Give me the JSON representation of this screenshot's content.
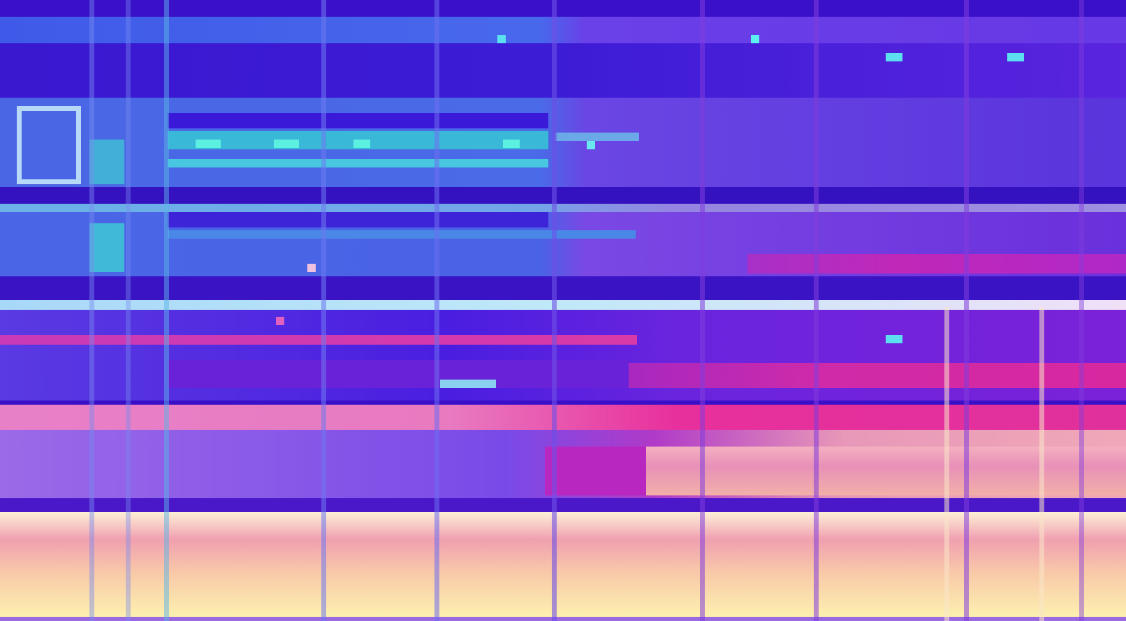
{
  "palette": {
    "base": "#3a0fc8",
    "deep": "#2a0ab0",
    "blue": "#3d4fe6",
    "blue_light": "#4a7cf0",
    "violet": "#6a2ee8",
    "purple": "#8a2ed8",
    "teal": "#3fd8c8",
    "cyan": "#5cf0f0",
    "magenta": "#d82ab0",
    "hot_pink": "#f03aa0",
    "pink": "#e89ac0",
    "peach": "#f8c8b0",
    "cream": "#fdf4b8",
    "pale_blue": "#b8d8f8"
  },
  "icons": [
    "square-outline-icon"
  ]
}
